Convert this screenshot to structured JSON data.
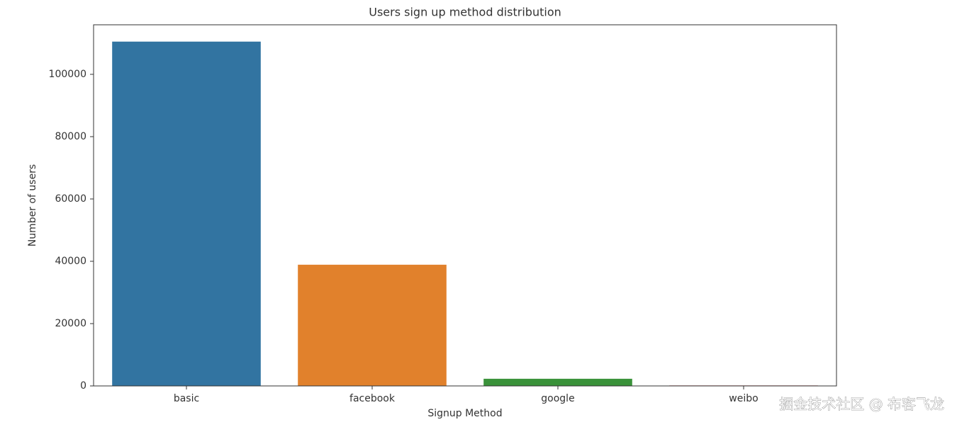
{
  "chart_data": {
    "type": "bar",
    "title": "Users sign up method distribution",
    "x_label": "Signup Method",
    "y_label": "Number of users",
    "categories": [
      "basic",
      "facebook",
      "google",
      "weibo"
    ],
    "values": [
      110500,
      38900,
      2300,
      150
    ],
    "colors": [
      "#3274a1",
      "#e1812c",
      "#3a923a",
      "#c03d3e"
    ],
    "ylim": [
      0,
      115900
    ],
    "yticks": [
      0,
      20000,
      40000,
      60000,
      80000,
      100000
    ],
    "grid": false
  },
  "watermark": "掘金技术社区 @ 布客飞龙"
}
